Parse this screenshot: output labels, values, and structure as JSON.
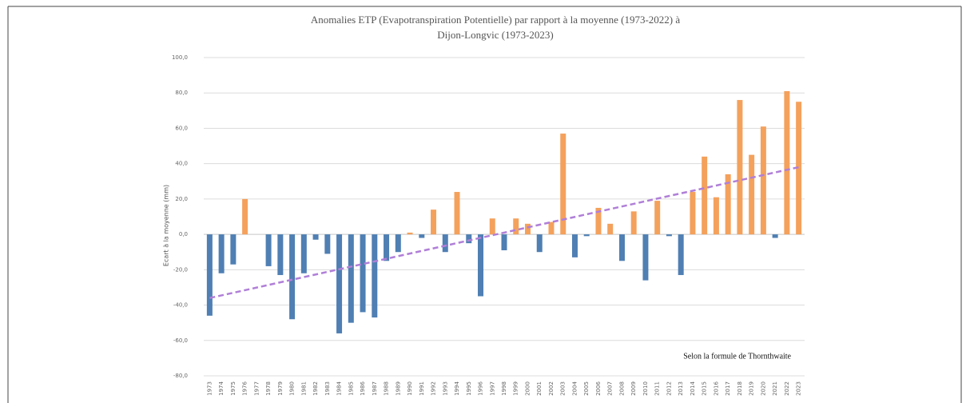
{
  "chart_data": {
    "type": "bar",
    "title": [
      "Anomalies ETP (Evapotranspiration Potentielle) par rapport à la moyenne (1973-2022) à",
      "Dijon-Longvic (1973-2023)"
    ],
    "ylabel": "Ecart à la moyenne (mm)",
    "annotation": "Selon la formule de Thornthwaite",
    "categories": [
      "1973",
      "1974",
      "1975",
      "1976",
      "1977",
      "1978",
      "1979",
      "1980",
      "1981",
      "1982",
      "1983",
      "1984",
      "1985",
      "1986",
      "1987",
      "1988",
      "1989",
      "1990",
      "1991",
      "1992",
      "1993",
      "1994",
      "1995",
      "1996",
      "1997",
      "1998",
      "1999",
      "2000",
      "2001",
      "2002",
      "2003",
      "2004",
      "2005",
      "2006",
      "2007",
      "2008",
      "2009",
      "2010",
      "2011",
      "2012",
      "2013",
      "2014",
      "2015",
      "2016",
      "2017",
      "2018",
      "2019",
      "2020",
      "2021",
      "2022",
      "2023"
    ],
    "values": [
      -46,
      -22,
      -17,
      20,
      0,
      -18,
      -23,
      -48,
      -22,
      -3,
      -11,
      -56,
      -50,
      -44,
      -47,
      -15,
      -10,
      1,
      -2,
      14,
      -10,
      24,
      -5,
      -35,
      9,
      -9,
      9,
      6,
      -10,
      7,
      57,
      -13,
      -1,
      15,
      6,
      -15,
      13,
      -26,
      19,
      -1,
      -23,
      24,
      44,
      21,
      34,
      76,
      45,
      61,
      -2,
      81,
      75
    ],
    "positive_color": "#f4a15c",
    "negative_color": "#4f7fb3",
    "trendline": {
      "start": -36,
      "end": 38,
      "color": "#b07fd8",
      "dashed": true
    },
    "ylim": [
      -80,
      100
    ],
    "yticks": [
      {
        "value": -80,
        "label": "-80,0"
      },
      {
        "value": -60,
        "label": "-60,0"
      },
      {
        "value": -40,
        "label": "-40,0"
      },
      {
        "value": -20,
        "label": "-20,0"
      },
      {
        "value": 0,
        "label": "0,0"
      },
      {
        "value": 20,
        "label": "20,0"
      },
      {
        "value": 40,
        "label": "40,0"
      },
      {
        "value": 60,
        "label": "60,0"
      },
      {
        "value": 80,
        "label": "80,0"
      },
      {
        "value": 100,
        "label": "100,0"
      }
    ],
    "grid": true
  }
}
